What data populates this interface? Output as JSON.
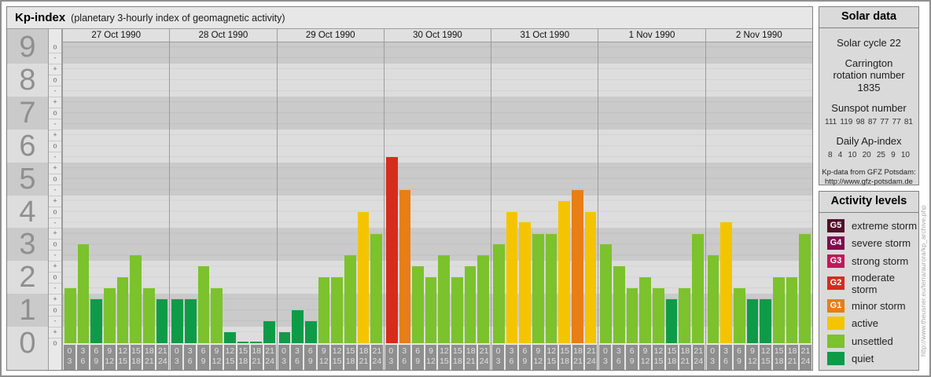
{
  "page": {
    "watermark": "http://www.theusner.eu/terra/aurora/kp_archive.php"
  },
  "header": {
    "title": "Kp-index",
    "subtitle": "(planetary 3-hourly index of geomagnetic activity)"
  },
  "chart_data": {
    "type": "bar",
    "title": "Kp-index (planetary 3-hourly index of geomagnetic activity)",
    "ylabel": "Kp",
    "ylim": [
      0,
      9.15
    ],
    "y_ticks": [
      0,
      1,
      2,
      3,
      4,
      5,
      6,
      7,
      8,
      9
    ],
    "y_subtick_labels": [
      "-",
      "o",
      "+"
    ],
    "grid": true,
    "legend_position": "right-panel",
    "x_slot_hours": [
      [
        "0",
        "3"
      ],
      [
        "3",
        "6"
      ],
      [
        "6",
        "9"
      ],
      [
        "9",
        "12"
      ],
      [
        "12",
        "15"
      ],
      [
        "15",
        "18"
      ],
      [
        "18",
        "21"
      ],
      [
        "21",
        "24"
      ]
    ],
    "days": [
      {
        "date": "27 Oct 1990",
        "kp_labels": [
          "2-",
          "3o",
          "1+",
          "2-",
          "2o",
          "3-",
          "2-",
          "1+"
        ],
        "values": [
          1.67,
          3.0,
          1.33,
          1.67,
          2.0,
          2.67,
          1.67,
          1.33
        ]
      },
      {
        "date": "28 Oct 1990",
        "kp_labels": [
          "1+",
          "1+",
          "2+",
          "2-",
          "0+",
          "0o",
          "0o",
          "1-"
        ],
        "values": [
          1.33,
          1.33,
          2.33,
          1.67,
          0.33,
          0.0,
          0.0,
          0.67
        ]
      },
      {
        "date": "29 Oct 1990",
        "kp_labels": [
          "0+",
          "1o",
          "1-",
          "2o",
          "2o",
          "3-",
          "4o",
          "3+"
        ],
        "values": [
          0.33,
          1.0,
          0.67,
          2.0,
          2.0,
          2.67,
          4.0,
          3.33
        ]
      },
      {
        "date": "30 Oct 1990",
        "kp_labels": [
          "6-",
          "5-",
          "2+",
          "2o",
          "3-",
          "2o",
          "2+",
          "3-"
        ],
        "values": [
          5.67,
          4.67,
          2.33,
          2.0,
          2.67,
          2.0,
          2.33,
          2.67
        ]
      },
      {
        "date": "31 Oct 1990",
        "kp_labels": [
          "3o",
          "4o",
          "4-",
          "3+",
          "3+",
          "4+",
          "5-",
          "4o"
        ],
        "values": [
          3.0,
          4.0,
          3.67,
          3.33,
          3.33,
          4.33,
          4.67,
          4.0
        ]
      },
      {
        "date": "1 Nov 1990",
        "kp_labels": [
          "3o",
          "2+",
          "2-",
          "2o",
          "2-",
          "1+",
          "2-",
          "3+"
        ],
        "values": [
          3.0,
          2.33,
          1.67,
          2.0,
          1.67,
          1.33,
          1.67,
          3.33
        ]
      },
      {
        "date": "2 Nov 1990",
        "kp_labels": [
          "3-",
          "4-",
          "2-",
          "1+",
          "1+",
          "2o",
          "2o",
          "3+"
        ],
        "values": [
          2.67,
          3.67,
          1.67,
          1.33,
          1.33,
          2.0,
          2.0,
          3.33
        ]
      }
    ]
  },
  "solar_data": {
    "title": "Solar data",
    "cycle": "Solar cycle 22",
    "carrington": "Carrington rotation number 1835",
    "sunspot_title": "Sunspot number",
    "sunspot_values": [
      "111",
      "119",
      "98",
      "87",
      "77",
      "77",
      "81"
    ],
    "ap_title": "Daily Ap-index",
    "ap_values": [
      "8",
      "4",
      "10",
      "20",
      "25",
      "9",
      "10"
    ],
    "source_line1": "Kp-data from GFZ Potsdam:",
    "source_line2": "http://www.gfz-potsdam.de"
  },
  "activity_levels": {
    "title": "Activity levels",
    "items": [
      {
        "code": "G5",
        "label": "extreme storm",
        "color": "#521029"
      },
      {
        "code": "G4",
        "label": "severe storm",
        "color": "#7E0E4E"
      },
      {
        "code": "G3",
        "label": "strong storm",
        "color": "#C2185B"
      },
      {
        "code": "G2",
        "label": "moderate storm",
        "color": "#D52D1C"
      },
      {
        "code": "G1",
        "label": "minor storm",
        "color": "#E87E15"
      },
      {
        "code": "",
        "label": "active",
        "color": "#F5C400"
      },
      {
        "code": "",
        "label": "unsettled",
        "color": "#7CC22C"
      },
      {
        "code": "",
        "label": "quiet",
        "color": "#0E9B48"
      }
    ]
  },
  "colors": {
    "quiet": "#0E9B48",
    "unsettled": "#7CC22C",
    "active": "#F5C400",
    "g1": "#E87E15",
    "g2": "#D52D1C",
    "g3": "#C2185B",
    "g4": "#7E0E4E",
    "g5": "#521029",
    "band_dark": "#CACACA",
    "band_light": "#DDDDDD"
  }
}
